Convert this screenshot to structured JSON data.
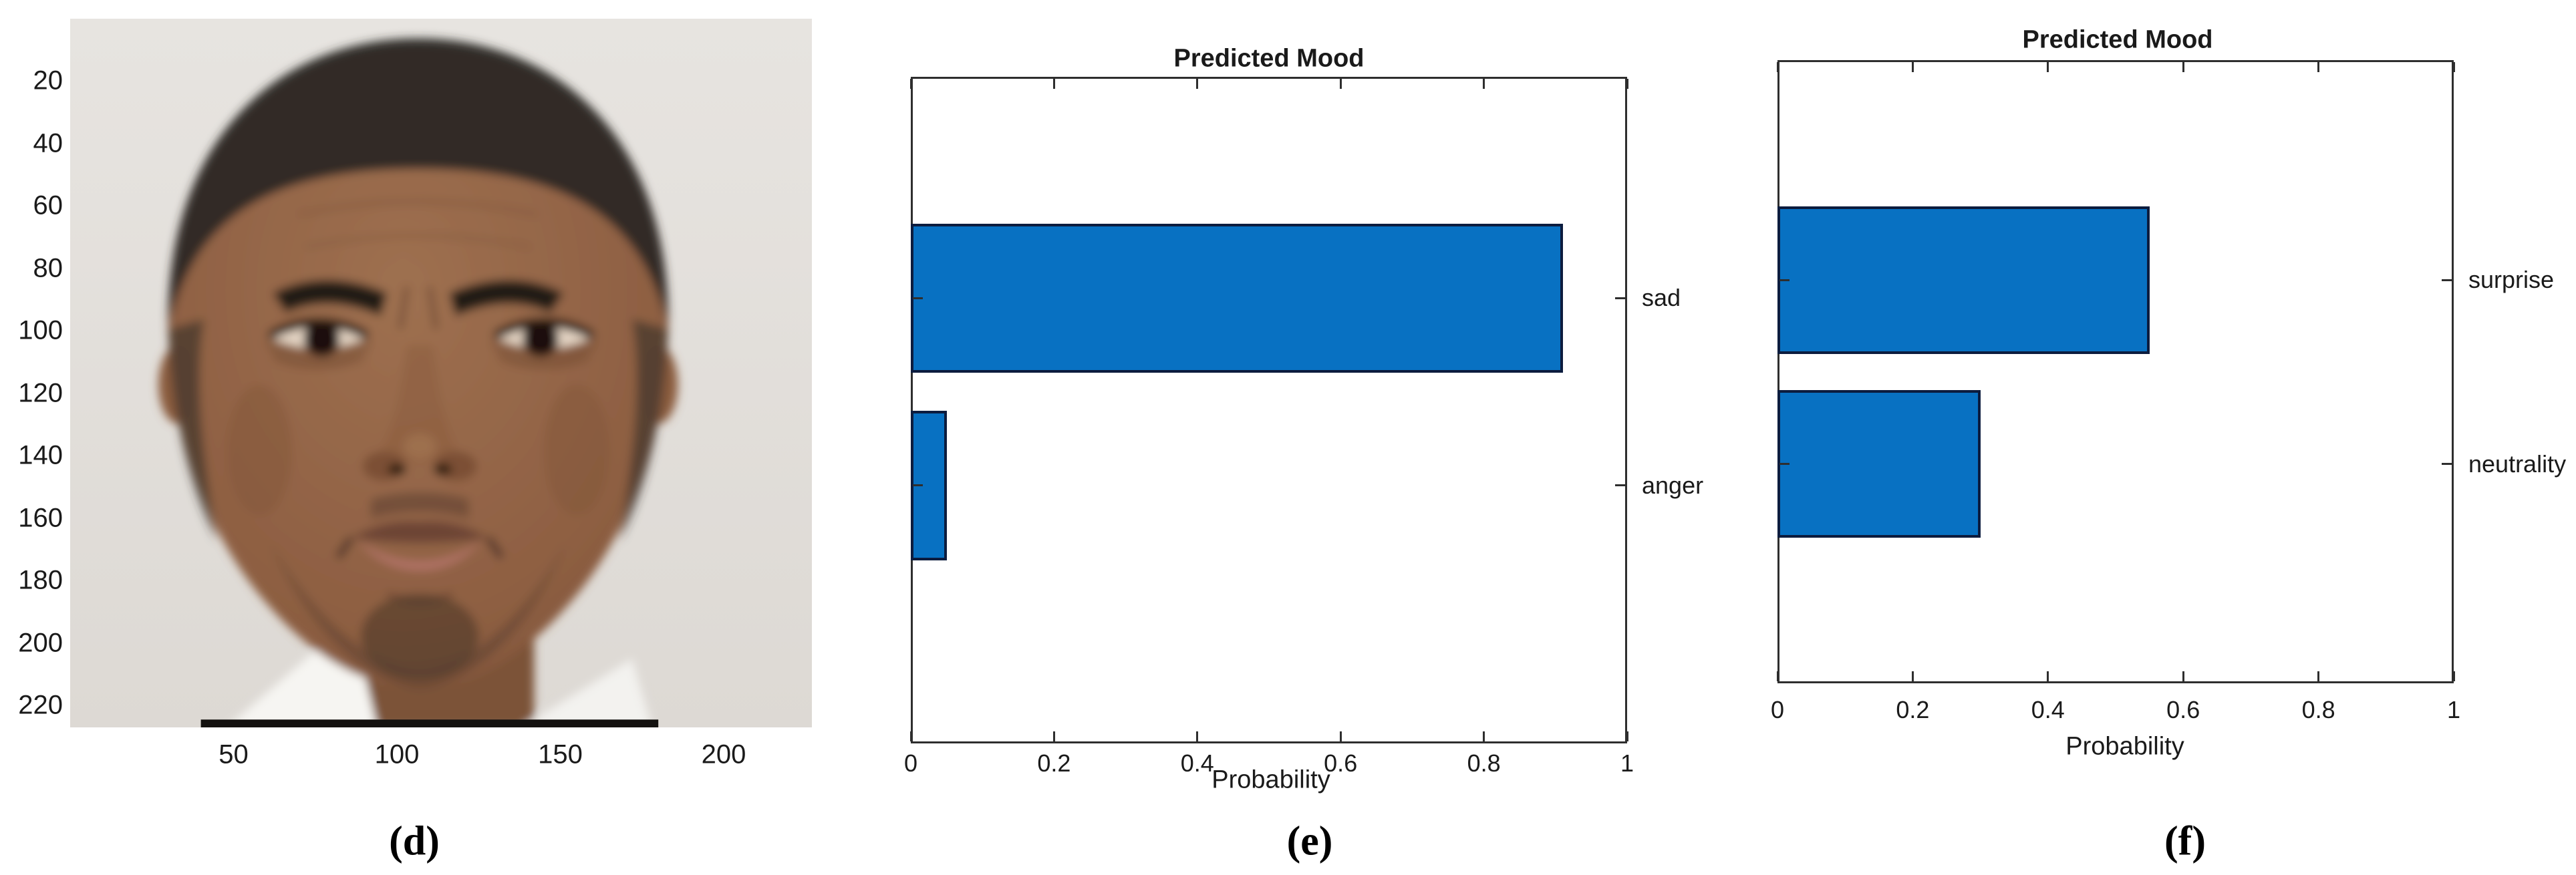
{
  "figure": {
    "background": "#ffffff",
    "captions": {
      "d": "(d)",
      "e": "(e)",
      "f": "(f)"
    }
  },
  "face_panel": {
    "caption": "(d)",
    "y_ticks": [
      "20",
      "40",
      "60",
      "80",
      "100",
      "120",
      "140",
      "160",
      "180",
      "200",
      "220"
    ],
    "x_ticks": [
      "50",
      "100",
      "150",
      "200"
    ],
    "axis_max": 227,
    "description": "Blurred frontal portrait of a young Black man with short buzz-cut hair, furrowed brows and a sad expression, wearing a white shirt against a light gray background",
    "colors": {
      "background": "#e4e1dc",
      "skin": "#96684a",
      "hair": "#2c2a25",
      "shirt": "#f6f5f2"
    }
  },
  "chart_data": [
    {
      "type": "bar",
      "orientation": "horizontal",
      "title": "Predicted Mood",
      "xlabel": "Probability",
      "caption": "(e)",
      "categories": [
        "sad",
        "anger"
      ],
      "values": [
        0.91,
        0.05
      ],
      "xlim": [
        0,
        1
      ],
      "x_ticks": [
        0,
        0.2,
        0.4,
        0.6,
        0.8,
        1
      ],
      "x_tick_labels": [
        "0",
        "0.2",
        "0.4",
        "0.6",
        "0.8",
        "1"
      ],
      "category_label_side": "right",
      "grid": false,
      "legend": false,
      "bar_color": "#0871c2",
      "bar_edge_color": "#0c1c3e",
      "axis_color": "#2e2e2e"
    },
    {
      "type": "bar",
      "orientation": "horizontal",
      "title": "Predicted Mood",
      "xlabel": "Probability",
      "caption": "(f)",
      "categories": [
        "surprise",
        "neutrality"
      ],
      "values": [
        0.55,
        0.3
      ],
      "xlim": [
        0,
        1
      ],
      "x_ticks": [
        0,
        0.2,
        0.4,
        0.6,
        0.8,
        1
      ],
      "x_tick_labels": [
        "0",
        "0.2",
        "0.4",
        "0.6",
        "0.8",
        "1"
      ],
      "category_label_side": "right",
      "grid": false,
      "legend": false,
      "bar_color": "#0871c2",
      "bar_edge_color": "#0c1c3e",
      "axis_color": "#2e2e2e"
    }
  ]
}
